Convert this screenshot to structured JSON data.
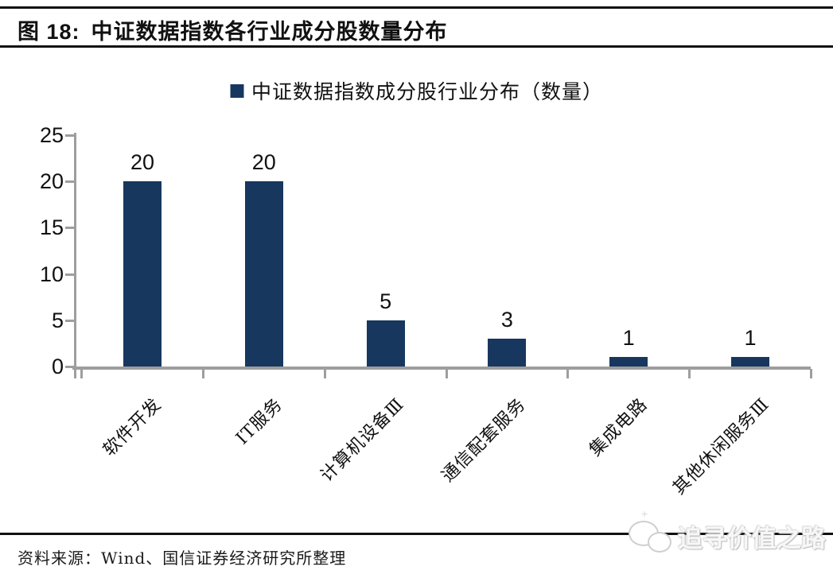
{
  "figure": {
    "label": "图 18:",
    "title": "中证数据指数各行业成分股数量分布"
  },
  "legend": {
    "label": "中证数据指数成分股行业分布（数量）",
    "marker_color": "#17375E"
  },
  "chart_data": {
    "type": "bar",
    "title": "中证数据指数成分股行业分布（数量）",
    "categories": [
      "软件开发",
      "IT服务",
      "计算机设备Ⅲ",
      "通信配套服务",
      "集成电路",
      "其他休闲服务Ⅲ"
    ],
    "values": [
      20,
      20,
      5,
      3,
      1,
      1
    ],
    "xlabel": "",
    "ylabel": "",
    "ylim": [
      0,
      25
    ],
    "yticks": [
      0,
      5,
      10,
      15,
      20,
      25
    ],
    "grid": "off",
    "legend_position": "top-center",
    "bar_color": "#17375E",
    "axis_color": "#9E9E9E",
    "label_color": "#111111"
  },
  "footer": {
    "source": "资料来源：Wind、国信证券经济研究所整理"
  },
  "watermark": {
    "text": "追寻价值之路",
    "logo": "chat-bubbles-logo"
  }
}
